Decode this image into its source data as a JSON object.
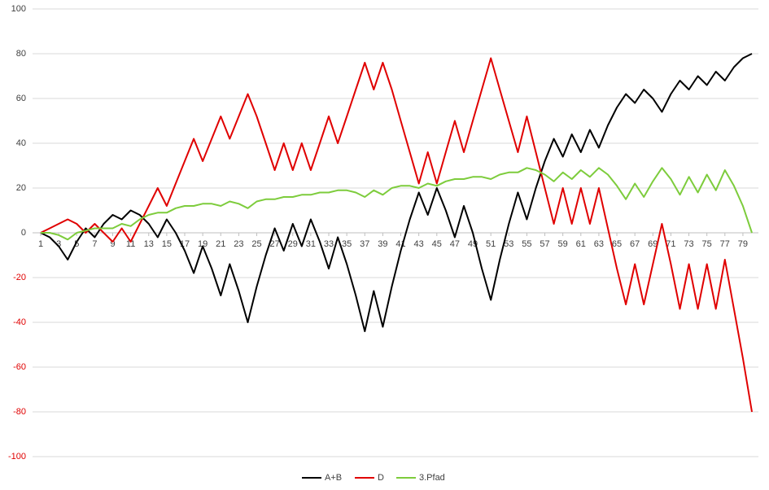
{
  "chart_data": {
    "type": "line",
    "x": [
      1,
      2,
      3,
      4,
      5,
      6,
      7,
      8,
      9,
      10,
      11,
      12,
      13,
      14,
      15,
      16,
      17,
      18,
      19,
      20,
      21,
      22,
      23,
      24,
      25,
      26,
      27,
      28,
      29,
      30,
      31,
      32,
      33,
      34,
      35,
      36,
      37,
      38,
      39,
      40,
      41,
      42,
      43,
      44,
      45,
      46,
      47,
      48,
      49,
      50,
      51,
      52,
      53,
      54,
      55,
      56,
      57,
      58,
      59,
      60,
      61,
      62,
      63,
      64,
      65,
      66,
      67,
      68,
      69,
      70,
      71,
      72,
      73,
      74,
      75,
      76,
      77,
      78,
      79,
      80
    ],
    "xlim": [
      1,
      80
    ],
    "xticks": [
      1,
      3,
      5,
      7,
      9,
      11,
      13,
      15,
      17,
      19,
      21,
      23,
      25,
      27,
      29,
      31,
      33,
      35,
      37,
      39,
      41,
      43,
      45,
      47,
      49,
      51,
      53,
      55,
      57,
      59,
      61,
      63,
      65,
      67,
      69,
      71,
      73,
      75,
      77,
      79
    ],
    "ylim": [
      -100,
      100
    ],
    "yticks": [
      -100,
      -80,
      -60,
      -40,
      -20,
      0,
      20,
      40,
      60,
      80,
      100
    ],
    "negative_tick_color": "#e00000",
    "grid": true,
    "legend": "bottom",
    "series": [
      {
        "name": "A+B",
        "color": "#000000",
        "values": [
          0,
          -2,
          -6,
          -12,
          -4,
          2,
          -2,
          4,
          8,
          6,
          10,
          8,
          4,
          -2,
          6,
          0,
          -8,
          -18,
          -6,
          -16,
          -28,
          -14,
          -26,
          -40,
          -24,
          -10,
          2,
          -8,
          4,
          -6,
          6,
          -4,
          -16,
          -2,
          -14,
          -28,
          -44,
          -26,
          -42,
          -24,
          -8,
          6,
          18,
          8,
          20,
          10,
          -2,
          12,
          0,
          -16,
          -30,
          -12,
          4,
          18,
          6,
          20,
          32,
          42,
          34,
          44,
          36,
          46,
          38,
          48,
          56,
          62,
          58,
          64,
          60,
          54,
          62,
          68,
          64,
          70,
          66,
          72,
          68,
          74,
          78,
          80
        ]
      },
      {
        "name": "D",
        "color": "#e00000",
        "values": [
          0,
          2,
          4,
          6,
          4,
          0,
          4,
          0,
          -4,
          2,
          -4,
          4,
          12,
          20,
          12,
          22,
          32,
          42,
          32,
          42,
          52,
          42,
          52,
          62,
          52,
          40,
          28,
          40,
          28,
          40,
          28,
          40,
          52,
          40,
          52,
          64,
          76,
          64,
          76,
          64,
          50,
          36,
          22,
          36,
          22,
          36,
          50,
          36,
          50,
          64,
          78,
          64,
          50,
          36,
          52,
          36,
          20,
          4,
          20,
          4,
          20,
          4,
          20,
          2,
          -16,
          -32,
          -14,
          -32,
          -14,
          4,
          -14,
          -34,
          -14,
          -34,
          -14,
          -34,
          -12,
          -34,
          -56,
          -80
        ]
      },
      {
        "name": "3.Pfad",
        "color": "#7dcc3c",
        "values": [
          0,
          0,
          -1,
          -3,
          0,
          1,
          2,
          2,
          2,
          4,
          3,
          6,
          8,
          9,
          9,
          11,
          12,
          12,
          13,
          13,
          12,
          14,
          13,
          11,
          14,
          15,
          15,
          16,
          16,
          17,
          17,
          18,
          18,
          19,
          19,
          18,
          16,
          19,
          17,
          20,
          21,
          21,
          20,
          22,
          21,
          23,
          24,
          24,
          25,
          25,
          24,
          26,
          27,
          27,
          29,
          28,
          26,
          23,
          27,
          24,
          28,
          25,
          29,
          26,
          21,
          15,
          22,
          16,
          23,
          29,
          24,
          17,
          25,
          18,
          26,
          19,
          28,
          21,
          12,
          0
        ]
      }
    ]
  }
}
